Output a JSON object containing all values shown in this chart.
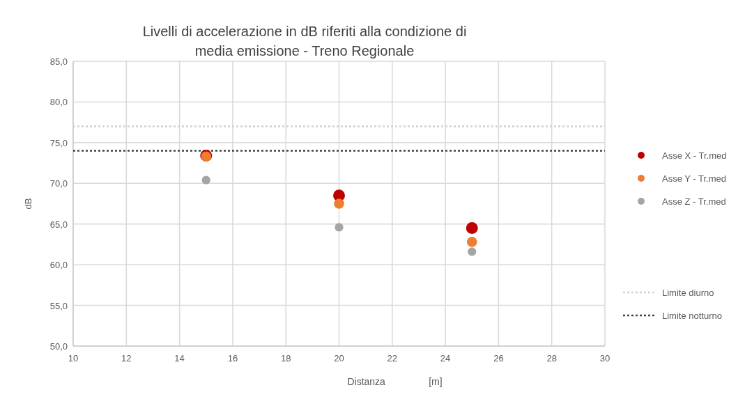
{
  "chart_data": {
    "type": "scatter",
    "title": "Livelli di accelerazione in dB riferiti alla condizione di media emissione - Treno Regionale",
    "xlabel": "Distanza                [m]",
    "ylabel": "dB",
    "x": [
      15,
      20,
      25
    ],
    "series": [
      {
        "name": "Asse X - Tr.med",
        "color": "#c00000",
        "values": [
          73.4,
          68.5,
          64.5
        ]
      },
      {
        "name": "Asse Y - Tr.med",
        "color": "#ed7d31",
        "values": [
          73.3,
          67.5,
          62.8
        ]
      },
      {
        "name": "Asse Z - Tr.med",
        "color": "#a5a5a5",
        "values": [
          70.4,
          64.6,
          61.6
        ]
      }
    ],
    "ref_lines": [
      {
        "axis": "y",
        "value": 77,
        "label": "Limite diurno",
        "color": "#d0d0d0",
        "line_style": "dotted"
      },
      {
        "axis": "y",
        "value": 74,
        "label": "Limite notturno",
        "color": "#404040",
        "line_style": "dotted"
      }
    ],
    "xlim": [
      10,
      30
    ],
    "xticks": [
      10,
      12,
      14,
      16,
      18,
      20,
      22,
      24,
      26,
      28,
      30
    ],
    "ylim": [
      50,
      85
    ],
    "yticks": [
      {
        "value": 50,
        "label": "50,0"
      },
      {
        "value": 55,
        "label": "55,0"
      },
      {
        "value": 60,
        "label": "60,0"
      },
      {
        "value": 65,
        "label": "65,0"
      },
      {
        "value": 70,
        "label": "70,0"
      },
      {
        "value": 75,
        "label": "75,0"
      },
      {
        "value": 80,
        "label": "80,0"
      },
      {
        "value": 85,
        "label": "85,0"
      }
    ],
    "grid": true,
    "legend": "right",
    "marker": "circle"
  }
}
